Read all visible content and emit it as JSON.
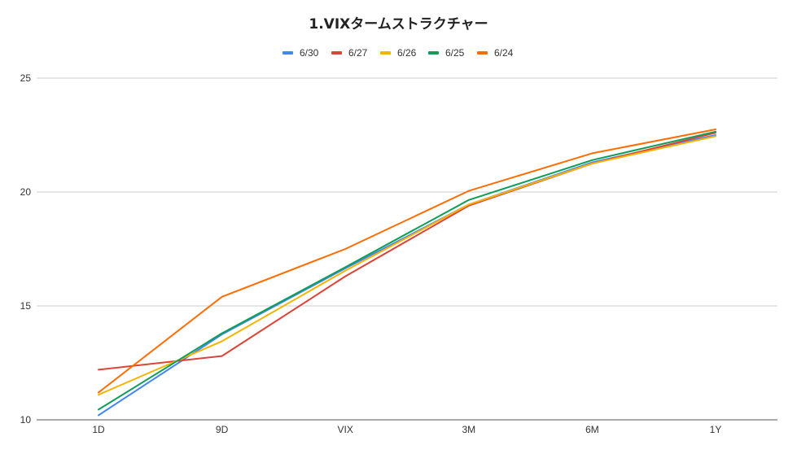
{
  "chart_data": {
    "type": "line",
    "title": "1.VIXタームストラクチャー",
    "xlabel": "",
    "ylabel": "",
    "categories": [
      "1D",
      "9D",
      "VIX",
      "3M",
      "6M",
      "1Y"
    ],
    "ylim": [
      10,
      25
    ],
    "yticks": [
      10,
      15,
      20,
      25
    ],
    "grid": true,
    "legend_position": "top",
    "series": [
      {
        "name": "6/30",
        "color": "#4285f4",
        "values": [
          10.2,
          13.75,
          16.65,
          19.45,
          21.3,
          22.5
        ]
      },
      {
        "name": "6/27",
        "color": "#db4437",
        "values": [
          12.2,
          12.8,
          16.3,
          19.4,
          21.25,
          22.6
        ]
      },
      {
        "name": "6/26",
        "color": "#f4b400",
        "values": [
          11.1,
          13.45,
          16.55,
          19.45,
          21.25,
          22.45
        ]
      },
      {
        "name": "6/25",
        "color": "#0f9d58",
        "values": [
          10.45,
          13.8,
          16.7,
          19.65,
          21.4,
          22.65
        ]
      },
      {
        "name": "6/24",
        "color": "#ff6d01",
        "values": [
          11.2,
          15.4,
          17.5,
          20.05,
          21.7,
          22.75
        ]
      }
    ]
  }
}
